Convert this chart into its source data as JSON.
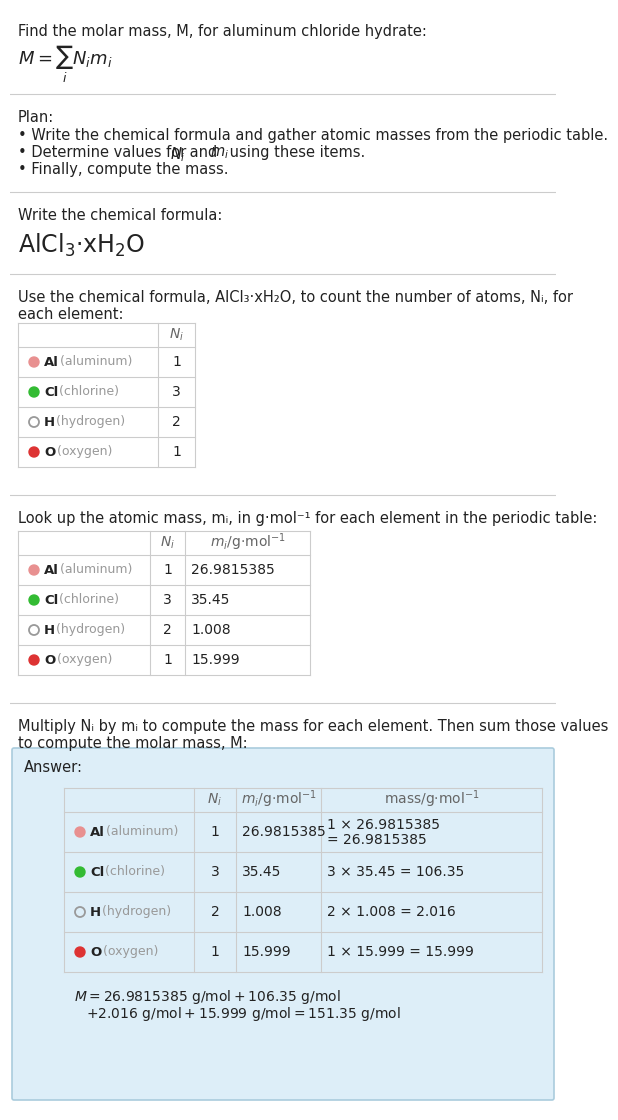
{
  "bg_color": "#ffffff",
  "answer_bg": "#ddeef8",
  "answer_border": "#aaccdd",
  "section_line_color": "#cccccc",
  "text_color": "#222222",
  "gray_text": "#999999",
  "table_border": "#cccccc",
  "header_text": "#666666",
  "title_line1": "Find the molar mass, M, for aluminum chloride hydrate:",
  "plan_label": "Plan:",
  "plan_bullets": [
    "• Write the chemical formula and gather atomic masses from the periodic table.",
    "• Determine values for Nᵢ and mᵢ using these items.",
    "• Finally, compute the mass."
  ],
  "formula_label": "Write the chemical formula:",
  "count_intro_1": "Use the chemical formula, AlCl₃·xH₂O, to count the number of atoms, Nᵢ, for",
  "count_intro_2": "each element:",
  "lookup_intro": "Look up the atomic mass, mᵢ, in g·mol⁻¹ for each element in the periodic table:",
  "multiply_intro_1": "Multiply Nᵢ by mᵢ to compute the mass for each element. Then sum those values",
  "multiply_intro_2": "to compute the molar mass, M:",
  "answer_label": "Answer:",
  "elements": [
    {
      "symbol": "Al",
      "name": "aluminum",
      "color": "#e89090",
      "filled": true,
      "Ni": "1",
      "mi": "26.9815385",
      "mass_line1": "1 × 26.9815385",
      "mass_line2": "= 26.9815385"
    },
    {
      "symbol": "Cl",
      "name": "chlorine",
      "color": "#33bb33",
      "filled": true,
      "Ni": "3",
      "mi": "35.45",
      "mass_line1": "3 × 35.45 = 106.35",
      "mass_line2": ""
    },
    {
      "symbol": "H",
      "name": "hydrogen",
      "color": "#999999",
      "filled": false,
      "Ni": "2",
      "mi": "1.008",
      "mass_line1": "2 × 1.008 = 2.016",
      "mass_line2": ""
    },
    {
      "symbol": "O",
      "name": "oxygen",
      "color": "#dd3333",
      "filled": true,
      "Ni": "1",
      "mi": "15.999",
      "mass_line1": "1 × 15.999 = 15.999",
      "mass_line2": ""
    }
  ],
  "final_eq_line1": "M = 26.9815385 g/mol + 106.35 g/mol",
  "final_eq_line2": "+ 2.016 g/mol + 15.999 g/mol = 151.35 g/mol"
}
